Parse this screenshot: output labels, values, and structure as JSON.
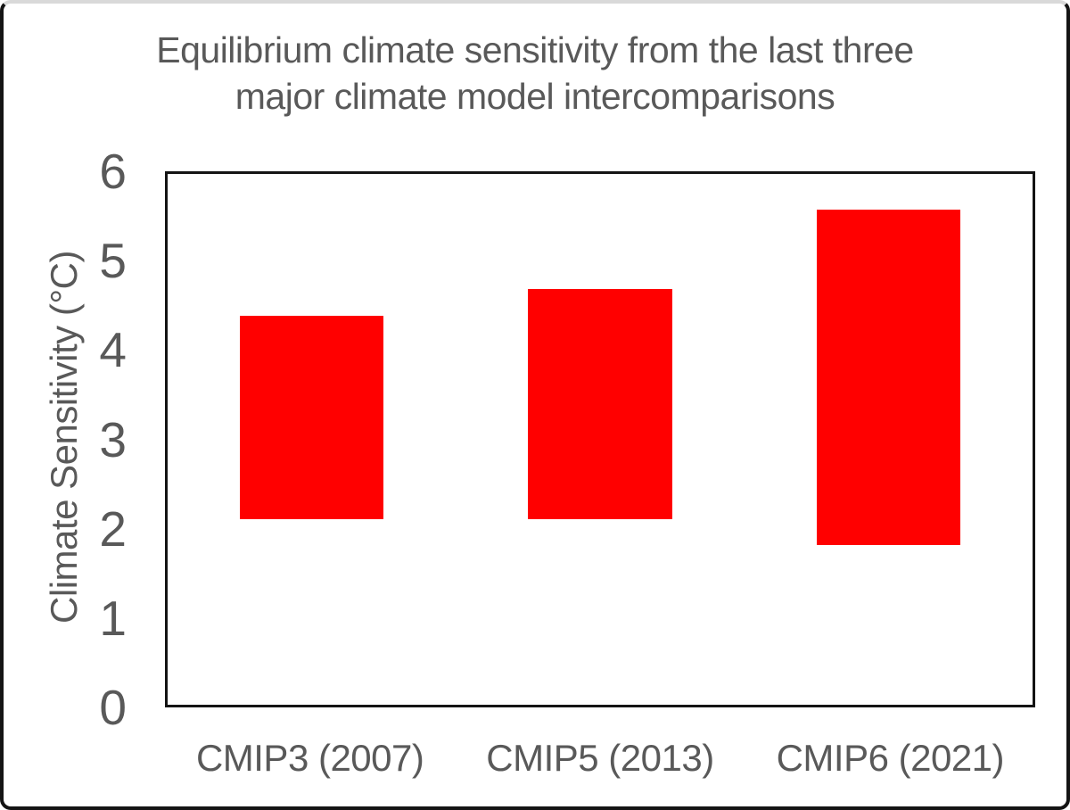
{
  "chart_data": {
    "type": "bar",
    "subtype": "floating-range-bars",
    "title": "Equilibrium climate sensitivity from the last three major climate model intercomparisons",
    "title_lines": [
      "Equilibrium climate sensitivity from the last three",
      "major climate model intercomparisons"
    ],
    "xlabel": "",
    "ylabel": "Climate Sensitivity (°C)",
    "categories": [
      "CMIP3 (2007)",
      "CMIP5 (2013)",
      "CMIP6 (2021)"
    ],
    "bars": [
      {
        "category": "CMIP3 (2007)",
        "low": 2.1,
        "high": 4.4
      },
      {
        "category": "CMIP5 (2013)",
        "low": 2.1,
        "high": 4.7
      },
      {
        "category": "CMIP6 (2021)",
        "low": 1.8,
        "high": 5.6
      }
    ],
    "ylim": [
      0,
      6
    ],
    "yticks": [
      0,
      1,
      2,
      3,
      4,
      5,
      6
    ],
    "grid": false,
    "legend": false,
    "colors": {
      "bar": "#ff0000",
      "text": "#595959",
      "frame": "#141414",
      "background": "#ffffff",
      "outer_border": "#141414"
    }
  }
}
